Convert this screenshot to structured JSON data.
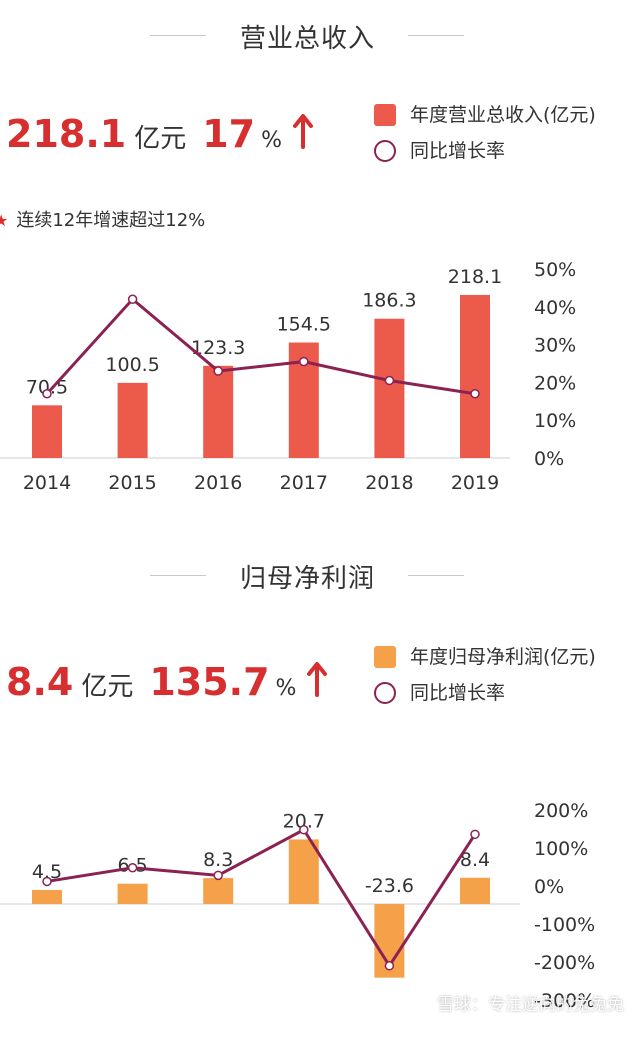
{
  "revenue": {
    "title": "营业总收入",
    "kpi_value": "218.1",
    "kpi_unit": "亿元",
    "kpi_growth": "17",
    "kpi_pct": "%",
    "legend_bar": "年度营业总收入(亿元)",
    "legend_line": "同比增长率",
    "note": "连续12年增速超过12%"
  },
  "profit": {
    "title": "归母净利润",
    "kpi_value": "8.4",
    "kpi_unit": "亿元",
    "kpi_growth": "135.7",
    "kpi_pct": "%",
    "legend_bar": "年度归母净利润(亿元)",
    "legend_line": "同比增长率"
  },
  "watermark": "雪球：专注逆向的兔兔免",
  "chart_data": [
    {
      "type": "bar",
      "categories": [
        "2014",
        "2015",
        "2016",
        "2017",
        "2018",
        "2019"
      ],
      "series": [
        {
          "name": "年度营业总收入(亿元)",
          "type": "bar",
          "values": [
            70.5,
            100.5,
            123.3,
            154.5,
            186.3,
            218.1
          ],
          "color": "#ec5a4c"
        },
        {
          "name": "同比增长率",
          "type": "line",
          "axis": "right",
          "values": [
            17,
            42,
            23,
            25.5,
            20.5,
            17
          ],
          "color": "#8b2252"
        }
      ],
      "data_labels": [
        "70.5",
        "100.5",
        "123.3",
        "154.5",
        "186.3",
        "218.1"
      ],
      "y_right_ticks": [
        "50%",
        "40%",
        "30%",
        "20%",
        "10%",
        "0%"
      ],
      "y_right_range": [
        0,
        50
      ],
      "grid": false
    },
    {
      "type": "bar",
      "categories": [
        "2014",
        "2015",
        "2016",
        "2017",
        "2018",
        "2019"
      ],
      "series": [
        {
          "name": "年度归母净利润(亿元)",
          "type": "bar",
          "values": [
            4.5,
            6.5,
            8.3,
            20.7,
            -23.6,
            8.4
          ],
          "color": "#f5a149"
        },
        {
          "name": "同比增长率",
          "type": "line",
          "axis": "right",
          "values": [
            12,
            48,
            28,
            148,
            -210,
            136
          ],
          "color": "#8b2252"
        }
      ],
      "data_labels": [
        "4.5",
        "6.5",
        "8.3",
        "20.7",
        "-23.6",
        "8.4"
      ],
      "y_right_ticks": [
        "200%",
        "100%",
        "0%",
        "-100%",
        "-200%",
        "-300%"
      ],
      "y_right_range": [
        -300,
        200
      ],
      "grid": false
    }
  ]
}
